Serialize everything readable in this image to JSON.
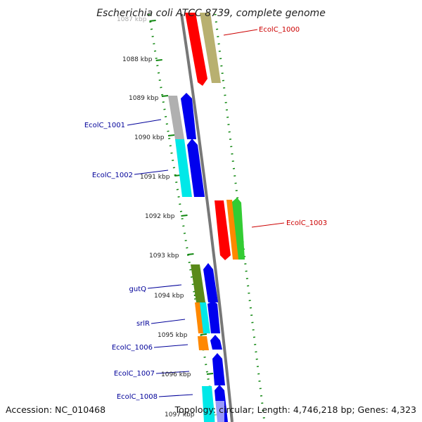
{
  "title": "Escherichia coli ATCC 8739, complete genome",
  "footer": {
    "accession": "Accession: NC_010468",
    "topology": "Topology: circular; Length: 4,746,218 bp; Genes: 4,323"
  },
  "ticks": [
    "1087 kbp",
    "1088 kbp",
    "1089 kbp",
    "1090 kbp",
    "1091 kbp",
    "1092 kbp",
    "1093 kbp",
    "1094 kbp",
    "1095 kbp",
    "1096 kbp",
    "1097 kbp"
  ],
  "features": [
    {
      "label": "EcolC_1000",
      "color": "#cc0000"
    },
    {
      "label": "EcolC_1001",
      "color": "#000099"
    },
    {
      "label": "EcolC_1002",
      "color": "#000099"
    },
    {
      "label": "EcolC_1003",
      "color": "#cc0000"
    },
    {
      "label": "gutQ",
      "color": "#000099"
    },
    {
      "label": "srlR",
      "color": "#000099"
    },
    {
      "label": "EcolC_1006",
      "color": "#000099"
    },
    {
      "label": "EcolC_1007",
      "color": "#000099"
    },
    {
      "label": "EcolC_1008",
      "color": "#000099"
    }
  ],
  "colors": {
    "red": "#ff0000",
    "khaki": "#b8b070",
    "blue": "#0000ee",
    "gray": "#b0b0b0",
    "cyan": "#00e8e8",
    "orange": "#ff8800",
    "green": "#33cc33",
    "olive": "#5a8a1a",
    "backbone": "#777777",
    "dots": "#118811"
  }
}
